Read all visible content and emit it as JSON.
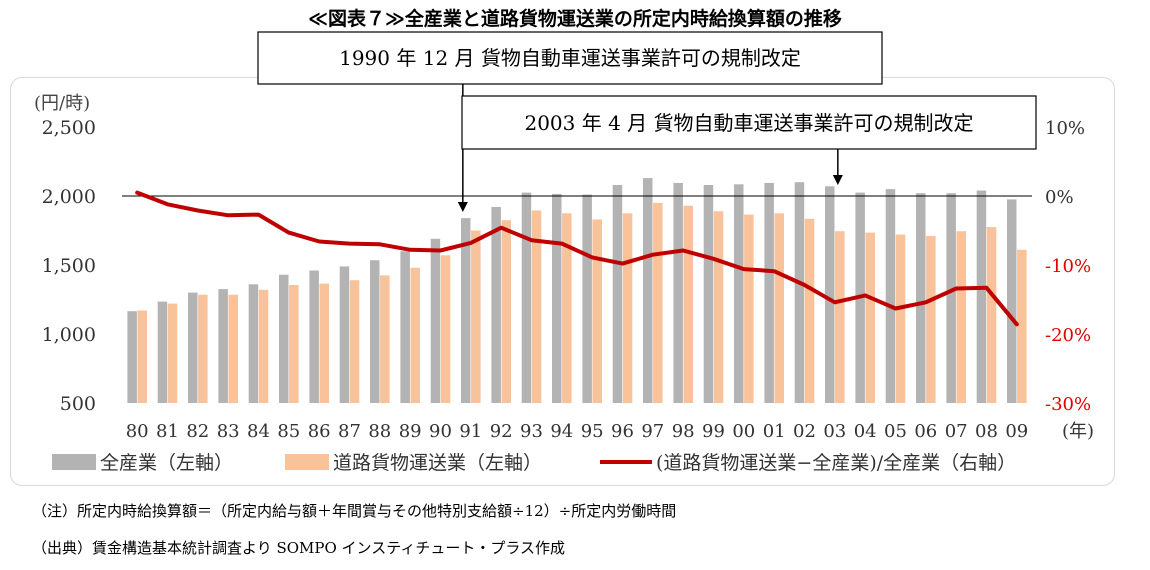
{
  "title": "≪図表７≫全産業と道路貨物運送業の所定内時給換算額の推移",
  "notes": {
    "note1": "（注）所定内時給換算額＝（所定内給与額＋年間賞与その他特別支給額÷12）÷所定内労働時間",
    "source": "（出典）賃金構造基本統計調査より SOMPO インスティチュート・プラス作成"
  },
  "colors": {
    "all_industries": "#b3b3b3",
    "road_freight": "#f8c29a",
    "ratio_line": "#c00000",
    "right_axis_negative": "#e00000"
  },
  "chart_data": {
    "type": "bar",
    "categories": [
      "80",
      "81",
      "82",
      "83",
      "84",
      "85",
      "86",
      "87",
      "88",
      "89",
      "90",
      "91",
      "92",
      "93",
      "94",
      "95",
      "96",
      "97",
      "98",
      "99",
      "00",
      "01",
      "02",
      "03",
      "04",
      "05",
      "06",
      "07",
      "08",
      "09"
    ],
    "xlabel_unit": "(年)",
    "left_axis": {
      "unit_label": "(円/時)",
      "ylim": [
        500,
        2500
      ],
      "ticks": [
        "500",
        "1,000",
        "1,500",
        "2,000",
        "2,500"
      ],
      "tick_values": [
        500,
        1000,
        1500,
        2000,
        2500
      ]
    },
    "right_axis": {
      "ylim": [
        -30,
        10
      ],
      "ticks": [
        "-30%",
        "-20%",
        "-10%",
        "0%",
        "10%"
      ],
      "tick_values": [
        -30,
        -20,
        -10,
        0,
        10
      ]
    },
    "series": [
      {
        "name": "全産業（左軸）",
        "axis": "left",
        "kind": "bar",
        "values": [
          1165,
          1235,
          1300,
          1325,
          1360,
          1430,
          1460,
          1490,
          1535,
          1600,
          1690,
          1840,
          1920,
          2025,
          2015,
          2010,
          2080,
          2130,
          2095,
          2080,
          2085,
          2095,
          2100,
          2070,
          2025,
          2050,
          2020,
          2020,
          2040,
          1975
        ]
      },
      {
        "name": "道路貨物運送業（左軸）",
        "axis": "left",
        "kind": "bar",
        "values": [
          1170,
          1220,
          1285,
          1285,
          1320,
          1355,
          1365,
          1390,
          1425,
          1480,
          1570,
          1750,
          1825,
          1895,
          1875,
          1830,
          1875,
          1950,
          1930,
          1890,
          1865,
          1875,
          1835,
          1745,
          1735,
          1720,
          1710,
          1745,
          1775,
          1610
        ]
      },
      {
        "name": "(道路貨物運送業−全産業)/全産業（右軸）",
        "axis": "right",
        "kind": "line",
        "values": [
          0.5,
          -1.2,
          -2.1,
          -2.8,
          -2.7,
          -5.3,
          -6.6,
          -6.9,
          -7.0,
          -7.8,
          -7.9,
          -6.8,
          -4.6,
          -6.4,
          -6.9,
          -8.9,
          -9.8,
          -8.5,
          -7.9,
          -9.1,
          -10.6,
          -10.9,
          -12.9,
          -15.4,
          -14.4,
          -16.3,
          -15.4,
          -13.4,
          -13.3,
          -18.6
        ]
      }
    ],
    "annotations": [
      {
        "text": "1990 年 12 月  貨物自動車運送事業許可の規制改定",
        "points_to": "91"
      },
      {
        "text": "2003 年 4 月  貨物自動車運送事業許可の規制改定",
        "points_to": "03"
      }
    ],
    "grid": false,
    "legend_position": "bottom"
  }
}
